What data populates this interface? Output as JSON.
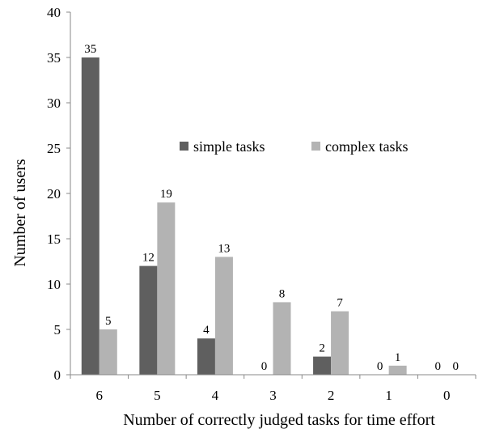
{
  "chart_data": {
    "type": "bar",
    "title": "",
    "xlabel": "Number of correctly judged tasks for time effort",
    "ylabel": "Number of users",
    "categories": [
      "6",
      "5",
      "4",
      "3",
      "2",
      "1",
      "0"
    ],
    "series": [
      {
        "name": "simple tasks",
        "color": "#5f5f5f",
        "values": [
          35,
          12,
          4,
          0,
          2,
          0,
          0
        ]
      },
      {
        "name": "complex tasks",
        "color": "#b3b3b3",
        "values": [
          5,
          19,
          13,
          8,
          7,
          1,
          0
        ]
      }
    ],
    "ylim": [
      0,
      40
    ],
    "yticks": [
      0,
      5,
      10,
      15,
      20,
      25,
      30,
      35,
      40
    ],
    "grid": false,
    "legend_position": "center-right",
    "data_labels": true
  }
}
